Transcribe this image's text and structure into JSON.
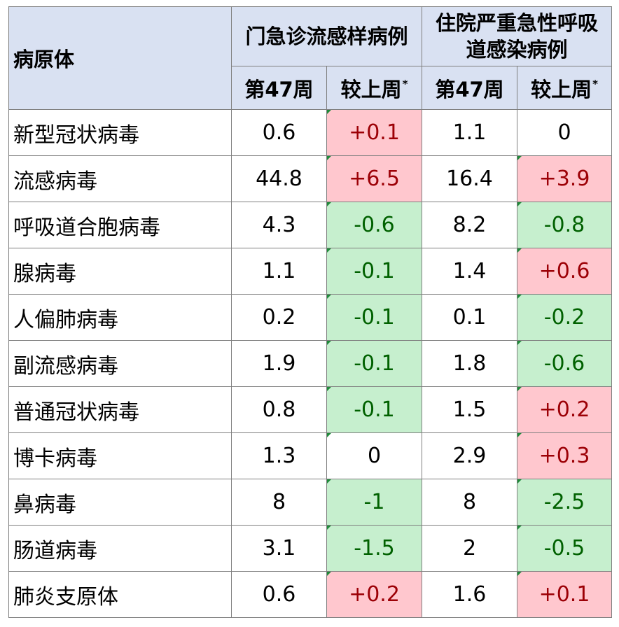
{
  "header": {
    "pathogen": "病原体",
    "outpatient": "门急诊流感样病例",
    "inpatient": "住院严重急性呼吸道感染病例",
    "week": "第47周",
    "change": "较上周",
    "footnote_mark": "*"
  },
  "rows": [
    {
      "name": "新型冠状病毒",
      "op_week": "0.6",
      "op_change": "+0.1",
      "ip_week": "1.1",
      "ip_change": "0"
    },
    {
      "name": "流感病毒",
      "op_week": "44.8",
      "op_change": "+6.5",
      "ip_week": "16.4",
      "ip_change": "+3.9"
    },
    {
      "name": "呼吸道合胞病毒",
      "op_week": "4.3",
      "op_change": "-0.6",
      "ip_week": "8.2",
      "ip_change": "-0.8"
    },
    {
      "name": "腺病毒",
      "op_week": "1.1",
      "op_change": "-0.1",
      "ip_week": "1.4",
      "ip_change": "+0.6"
    },
    {
      "name": "人偏肺病毒",
      "op_week": "0.2",
      "op_change": "-0.1",
      "ip_week": "0.1",
      "ip_change": "-0.2"
    },
    {
      "name": "副流感病毒",
      "op_week": "1.9",
      "op_change": "-0.1",
      "ip_week": "1.8",
      "ip_change": "-0.6"
    },
    {
      "name": "普通冠状病毒",
      "op_week": "0.8",
      "op_change": "-0.1",
      "ip_week": "1.5",
      "ip_change": "+0.2"
    },
    {
      "name": "博卡病毒",
      "op_week": "1.3",
      "op_change": "0",
      "ip_week": "2.9",
      "ip_change": "+0.3"
    },
    {
      "name": "鼻病毒",
      "op_week": "8",
      "op_change": "-1",
      "ip_week": "8",
      "ip_change": "-2.5"
    },
    {
      "name": "肠道病毒",
      "op_week": "3.1",
      "op_change": "-1.5",
      "ip_week": "2",
      "ip_change": "-0.5"
    },
    {
      "name": "肺炎支原体",
      "op_week": "0.6",
      "op_change": "+0.2",
      "ip_week": "1.6",
      "ip_change": "+0.1"
    }
  ],
  "colors": {
    "header_bg": "#d9e1f2",
    "increase_bg": "#ffc7ce",
    "increase_text": "#9c0006",
    "decrease_bg": "#c6efce",
    "decrease_text": "#006100",
    "grid": "#7f7f7f"
  }
}
